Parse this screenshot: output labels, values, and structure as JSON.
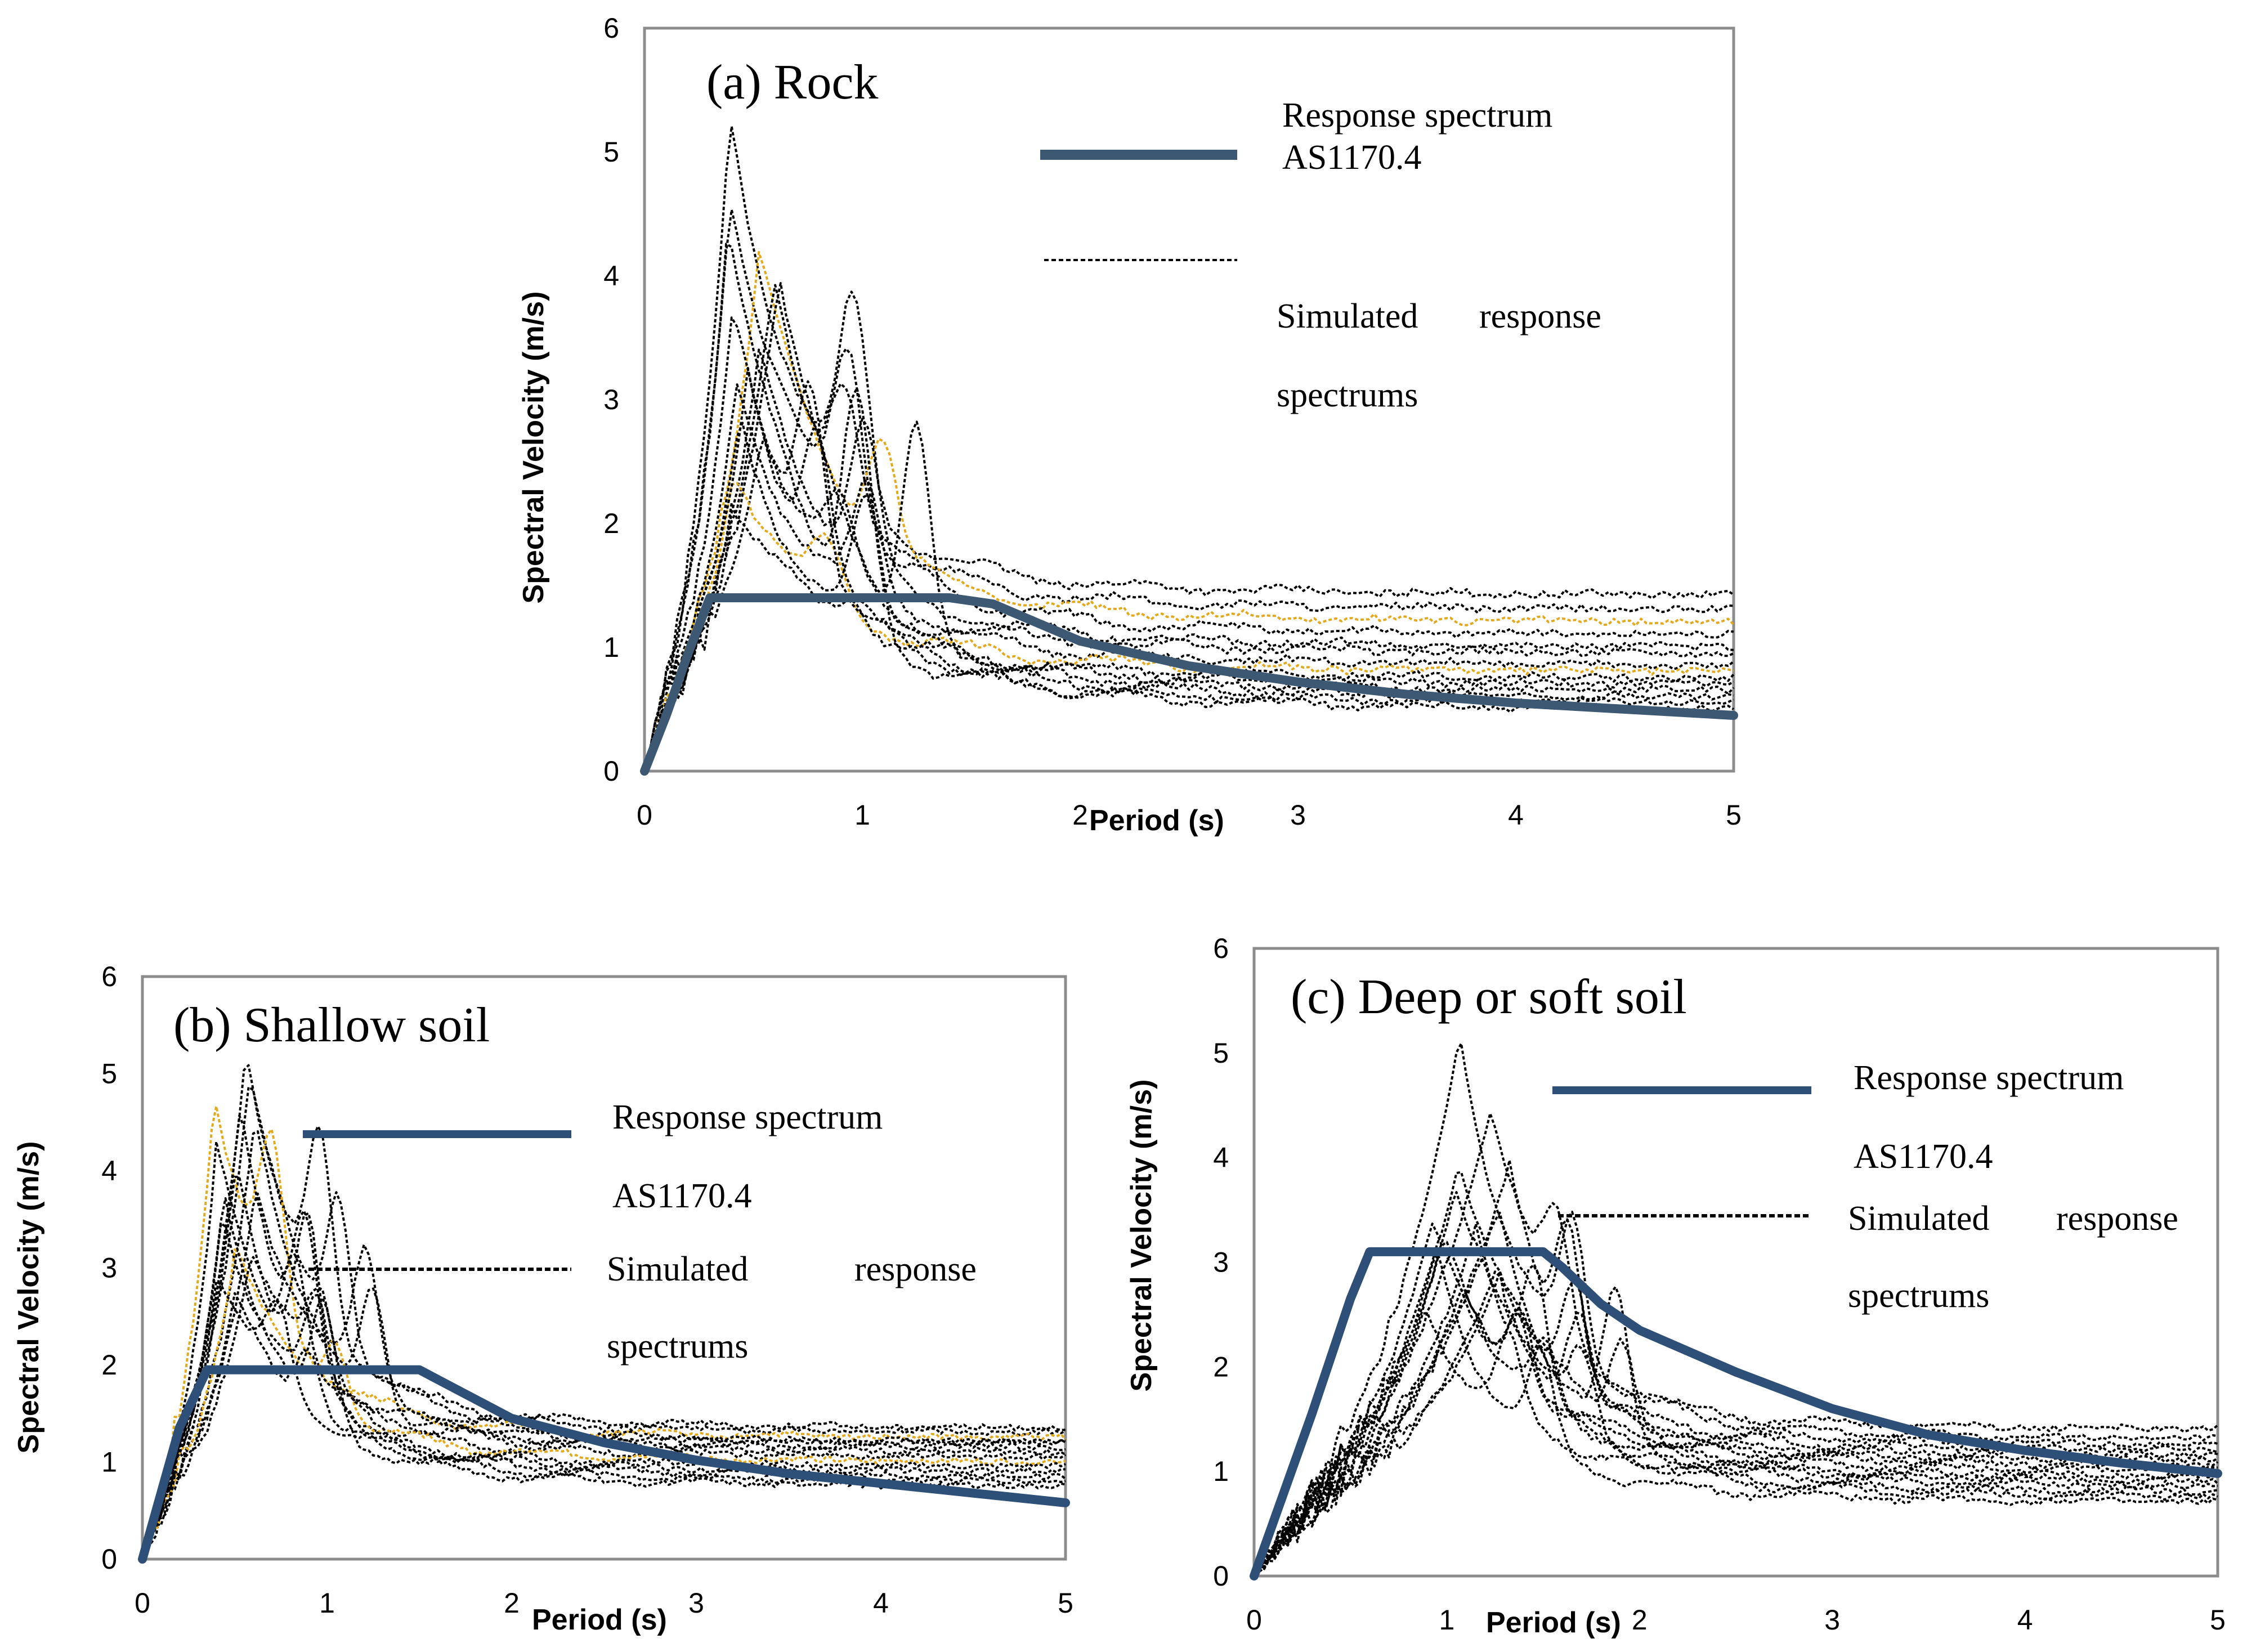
{
  "figure": {
    "legend_line_label": "Response spectrum",
    "legend_line_label_b": "Response  spectrum",
    "legend_standard": "AS1170.4",
    "legend_sim_word1": "Simulated",
    "legend_sim_word2": "response",
    "legend_sim_word3": "spectrums",
    "colors": {
      "design": "#3d5873",
      "design_b": "#2e5078",
      "sim": "#000000",
      "sim_highlight": "#e3a91c",
      "frame": "#8c8c8c"
    }
  },
  "chart_data": [
    {
      "id": "a",
      "type": "line",
      "title": "(a) Rock",
      "xlabel": "Period (s)",
      "ylabel": "Spectral Velocity (m/s)",
      "xlim": [
        0,
        5
      ],
      "ylim": [
        0,
        6
      ],
      "x_ticks": [
        "0",
        "1",
        "2",
        "3",
        "4",
        "5"
      ],
      "y_ticks": [
        "0",
        "1",
        "2",
        "3",
        "4",
        "5",
        "6"
      ],
      "series": [
        {
          "name": "Response spectrum AS1170.4",
          "style": "solid",
          "points": [
            [
              0,
              0
            ],
            [
              0.1,
              0.45
            ],
            [
              0.2,
              0.95
            ],
            [
              0.3,
              1.4
            ],
            [
              0.5,
              1.4
            ],
            [
              1.0,
              1.4
            ],
            [
              1.4,
              1.4
            ],
            [
              1.6,
              1.35
            ],
            [
              1.8,
              1.2
            ],
            [
              2.0,
              1.05
            ],
            [
              2.5,
              0.85
            ],
            [
              3.0,
              0.72
            ],
            [
              3.5,
              0.62
            ],
            [
              4.0,
              0.55
            ],
            [
              4.5,
              0.5
            ],
            [
              5.0,
              0.45
            ]
          ]
        },
        {
          "name": "Simulated response spectrums",
          "style": "dotted",
          "count": 14,
          "peak_period": 0.5,
          "peak_values": [
            5.35,
            4.7,
            4.2,
            3.9,
            3.4,
            3.1,
            2.8,
            2.5,
            2.2,
            4.4,
            3.7,
            3.2,
            2.9,
            4.0
          ],
          "long_period_values": [
            1.42,
            1.3,
            1.2,
            1.1,
            1.0,
            0.95,
            0.85,
            0.8,
            0.75,
            0.7,
            0.65,
            0.6,
            0.55,
            0.5
          ]
        }
      ]
    },
    {
      "id": "b",
      "type": "line",
      "title": "(b) Shallow soil",
      "xlabel": "Period (s)",
      "ylabel": "Spectral Velocity (m/s)",
      "xlim": [
        0,
        5
      ],
      "ylim": [
        0,
        6
      ],
      "x_ticks": [
        "0",
        "1",
        "2",
        "3",
        "4",
        "5"
      ],
      "y_ticks": [
        "0",
        "1",
        "2",
        "3",
        "4",
        "5",
        "6"
      ],
      "series": [
        {
          "name": "Response spectrum AS1170.4",
          "style": "solid",
          "points": [
            [
              0,
              0
            ],
            [
              0.2,
              1.35
            ],
            [
              0.35,
              1.95
            ],
            [
              0.6,
              1.95
            ],
            [
              1.0,
              1.95
            ],
            [
              1.5,
              1.95
            ],
            [
              1.6,
              1.85
            ],
            [
              1.8,
              1.65
            ],
            [
              2.0,
              1.45
            ],
            [
              2.5,
              1.2
            ],
            [
              3.0,
              1.02
            ],
            [
              3.5,
              0.88
            ],
            [
              4.0,
              0.78
            ],
            [
              4.5,
              0.68
            ],
            [
              5.0,
              0.58
            ]
          ]
        },
        {
          "name": "Simulated response spectrums",
          "style": "dotted",
          "count": 14,
          "peak_period": 0.5,
          "peak_values": [
            5.3,
            5.0,
            4.8,
            4.5,
            4.2,
            3.9,
            3.6,
            3.3,
            3.0,
            2.7,
            4.6,
            4.1,
            3.8,
            3.2
          ],
          "long_period_values": [
            1.35,
            1.3,
            1.25,
            1.2,
            1.15,
            1.1,
            1.05,
            1.0,
            0.95,
            0.9,
            0.85,
            0.8,
            0.75,
            1.2
          ]
        }
      ]
    },
    {
      "id": "c",
      "type": "line",
      "title": "(c) Deep or soft soil",
      "xlabel": "Period (s)",
      "ylabel": "Spectral Velocity (m/s)",
      "xlim": [
        0,
        5
      ],
      "ylim": [
        0,
        6
      ],
      "x_ticks": [
        "0",
        "1",
        "2",
        "3",
        "4",
        "5"
      ],
      "y_ticks": [
        "0",
        "1",
        "2",
        "3",
        "4",
        "5",
        "6"
      ],
      "series": [
        {
          "name": "Response spectrum AS1170.4",
          "style": "solid",
          "points": [
            [
              0,
              0
            ],
            [
              0.3,
              1.55
            ],
            [
              0.5,
              2.65
            ],
            [
              0.6,
              3.1
            ],
            [
              1.0,
              3.1
            ],
            [
              1.5,
              3.1
            ],
            [
              1.6,
              2.95
            ],
            [
              1.8,
              2.6
            ],
            [
              2.0,
              2.35
            ],
            [
              2.5,
              1.95
            ],
            [
              3.0,
              1.6
            ],
            [
              3.5,
              1.35
            ],
            [
              4.0,
              1.2
            ],
            [
              4.5,
              1.08
            ],
            [
              5.0,
              0.98
            ]
          ]
        },
        {
          "name": "Simulated response spectrums",
          "style": "dotted",
          "count": 14,
          "peak_period": 1.1,
          "peak_values": [
            5.2,
            4.5,
            4.0,
            3.7,
            3.4,
            3.2,
            3.0,
            2.8,
            2.6,
            3.9,
            3.5,
            3.3,
            2.9,
            3.1
          ],
          "long_period_values": [
            1.4,
            1.3,
            1.25,
            1.2,
            1.15,
            1.1,
            1.05,
            1.0,
            0.95,
            0.9,
            0.85,
            0.8,
            0.75,
            0.7
          ]
        }
      ]
    }
  ]
}
